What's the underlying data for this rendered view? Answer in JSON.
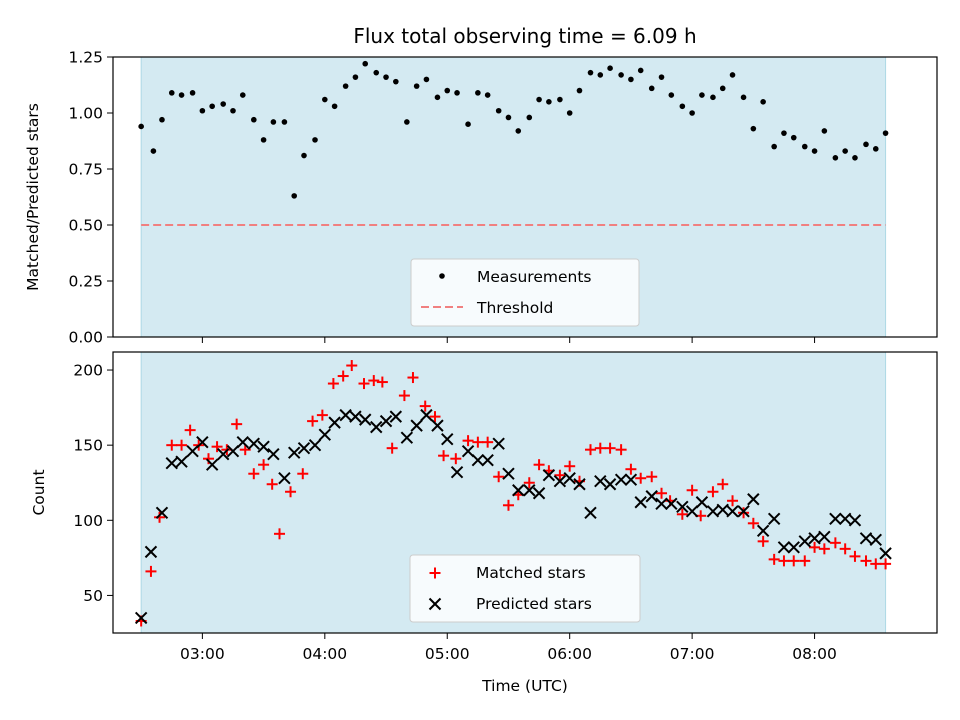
{
  "chart_data": [
    {
      "type": "scatter",
      "title": "Flux total observing time = 6.09 h",
      "xlabel": "",
      "ylabel": "Matched/Predicted stars",
      "xlim_hours": [
        2.27,
        9.0
      ],
      "ylim": [
        0,
        1.25
      ],
      "yticks": [
        0.0,
        0.25,
        0.5,
        0.75,
        1.0,
        1.25
      ],
      "ytick_labels": [
        "0.00",
        "0.25",
        "0.50",
        "0.75",
        "1.00",
        "1.25"
      ],
      "xticks_hours": [
        3,
        4,
        5,
        6,
        7,
        8
      ],
      "xtick_labels": [
        "03:00",
        "04:00",
        "05:00",
        "06:00",
        "07:00",
        "08:00"
      ],
      "show_xtick_labels": false,
      "observing_span_hours": [
        2.5,
        8.58
      ],
      "threshold": 0.5,
      "legend_location": "lower center",
      "grid": false,
      "series": [
        {
          "name": "Measurements",
          "marker": "dot",
          "color": "#000000",
          "x": [
            2.5,
            2.6,
            2.67,
            2.75,
            2.83,
            2.92,
            3.0,
            3.08,
            3.17,
            3.25,
            3.33,
            3.42,
            3.5,
            3.58,
            3.67,
            3.75,
            3.83,
            3.92,
            4.0,
            4.08,
            4.17,
            4.25,
            4.33,
            4.42,
            4.5,
            4.58,
            4.67,
            4.75,
            4.83,
            4.92,
            5.0,
            5.08,
            5.17,
            5.25,
            5.33,
            5.42,
            5.5,
            5.58,
            5.67,
            5.75,
            5.83,
            5.92,
            6.0,
            6.08,
            6.17,
            6.25,
            6.33,
            6.42,
            6.5,
            6.58,
            6.67,
            6.75,
            6.83,
            6.92,
            7.0,
            7.08,
            7.17,
            7.25,
            7.33,
            7.42,
            7.5,
            7.58,
            7.67,
            7.75,
            7.83,
            7.92,
            8.0,
            8.08,
            8.17,
            8.25,
            8.33,
            8.42,
            8.5,
            8.58
          ],
          "y": [
            0.94,
            0.83,
            0.97,
            1.09,
            1.08,
            1.09,
            1.01,
            1.03,
            1.04,
            1.01,
            1.08,
            0.97,
            0.88,
            0.96,
            0.96,
            0.63,
            0.81,
            0.88,
            1.06,
            1.03,
            1.12,
            1.16,
            1.22,
            1.18,
            1.16,
            1.14,
            0.96,
            1.12,
            1.15,
            1.07,
            1.1,
            1.09,
            0.95,
            1.09,
            1.08,
            1.01,
            0.98,
            0.92,
            0.98,
            1.06,
            1.05,
            1.06,
            1.0,
            1.1,
            1.18,
            1.17,
            1.2,
            1.17,
            1.15,
            1.19,
            1.11,
            1.16,
            1.08,
            1.03,
            1.0,
            1.08,
            1.07,
            1.11,
            1.17,
            1.07,
            0.93,
            1.05,
            0.85,
            0.91,
            0.89,
            0.85,
            0.83,
            0.92,
            0.8,
            0.83,
            0.8,
            0.86,
            0.84,
            0.91
          ]
        },
        {
          "name": "Threshold",
          "marker": "dashed-line",
          "color": "#f08080",
          "value": 0.5
        }
      ]
    },
    {
      "type": "scatter",
      "title": "",
      "xlabel": "Time (UTC)",
      "ylabel": "Count",
      "xlim_hours": [
        2.27,
        9.0
      ],
      "ylim": [
        25,
        212
      ],
      "yticks": [
        50,
        100,
        150,
        200
      ],
      "ytick_labels": [
        "50",
        "100",
        "150",
        "200"
      ],
      "xticks_hours": [
        3,
        4,
        5,
        6,
        7,
        8
      ],
      "xtick_labels": [
        "03:00",
        "04:00",
        "05:00",
        "06:00",
        "07:00",
        "08:00"
      ],
      "show_xtick_labels": true,
      "observing_span_hours": [
        2.5,
        8.58
      ],
      "legend_location": "lower center",
      "grid": false,
      "series": [
        {
          "name": "Matched stars",
          "marker": "plus",
          "color": "#ff0000",
          "x": [
            2.5,
            2.58,
            2.65,
            2.75,
            2.83,
            2.9,
            2.97,
            3.05,
            3.12,
            3.2,
            3.28,
            3.35,
            3.42,
            3.5,
            3.57,
            3.63,
            3.72,
            3.82,
            3.9,
            3.98,
            4.07,
            4.15,
            4.22,
            4.32,
            4.4,
            4.47,
            4.55,
            4.65,
            4.72,
            4.82,
            4.9,
            4.97,
            5.07,
            5.17,
            5.25,
            5.33,
            5.42,
            5.5,
            5.58,
            5.67,
            5.75,
            5.83,
            5.92,
            6.0,
            6.08,
            6.17,
            6.25,
            6.33,
            6.42,
            6.5,
            6.58,
            6.67,
            6.75,
            6.82,
            6.92,
            7.0,
            7.07,
            7.17,
            7.25,
            7.33,
            7.42,
            7.5,
            7.58,
            7.67,
            7.75,
            7.83,
            7.92,
            8.0,
            8.08,
            8.17,
            8.25,
            8.33,
            8.42,
            8.5,
            8.58
          ],
          "y": [
            33,
            66,
            102,
            150,
            150,
            160,
            150,
            141,
            149,
            147,
            164,
            147,
            131,
            137,
            124,
            91,
            119,
            131,
            166,
            170,
            191,
            196,
            203,
            191,
            193,
            192,
            148,
            183,
            195,
            176,
            169,
            143,
            141,
            153,
            152,
            152,
            129,
            110,
            117,
            125,
            137,
            133,
            130,
            136,
            126,
            147,
            148,
            148,
            147,
            134,
            128,
            129,
            118,
            113,
            104,
            120,
            103,
            119,
            124,
            113,
            105,
            98,
            86,
            74,
            73,
            73,
            73,
            82,
            81,
            85,
            81,
            76,
            73,
            71,
            71
          ]
        },
        {
          "name": "Predicted stars",
          "marker": "x",
          "color": "#000000",
          "x": [
            2.5,
            2.58,
            2.67,
            2.75,
            2.83,
            2.92,
            3.0,
            3.08,
            3.17,
            3.25,
            3.33,
            3.42,
            3.5,
            3.58,
            3.67,
            3.75,
            3.83,
            3.92,
            4.0,
            4.08,
            4.17,
            4.25,
            4.33,
            4.42,
            4.5,
            4.58,
            4.67,
            4.75,
            4.83,
            4.92,
            5.0,
            5.08,
            5.17,
            5.25,
            5.33,
            5.42,
            5.5,
            5.58,
            5.67,
            5.75,
            5.83,
            5.92,
            6.0,
            6.08,
            6.17,
            6.25,
            6.33,
            6.42,
            6.5,
            6.58,
            6.67,
            6.75,
            6.83,
            6.92,
            7.0,
            7.08,
            7.17,
            7.25,
            7.33,
            7.42,
            7.5,
            7.58,
            7.67,
            7.75,
            7.83,
            7.92,
            8.0,
            8.08,
            8.17,
            8.25,
            8.33,
            8.42,
            8.5,
            8.58
          ],
          "y": [
            35,
            79,
            105,
            138,
            139,
            146,
            152,
            137,
            144,
            146,
            152,
            151,
            149,
            144,
            128,
            145,
            148,
            150,
            157,
            165,
            170,
            169,
            167,
            162,
            166,
            169,
            155,
            163,
            170,
            163,
            154,
            132,
            146,
            140,
            140,
            151,
            131,
            120,
            120,
            118,
            130,
            126,
            128,
            124,
            105,
            126,
            124,
            127,
            127,
            112,
            116,
            111,
            111,
            109,
            106,
            112,
            106,
            107,
            106,
            106,
            114,
            93,
            101,
            82,
            82,
            86,
            88,
            89,
            101,
            101,
            100,
            88,
            87,
            78
          ]
        }
      ]
    }
  ]
}
